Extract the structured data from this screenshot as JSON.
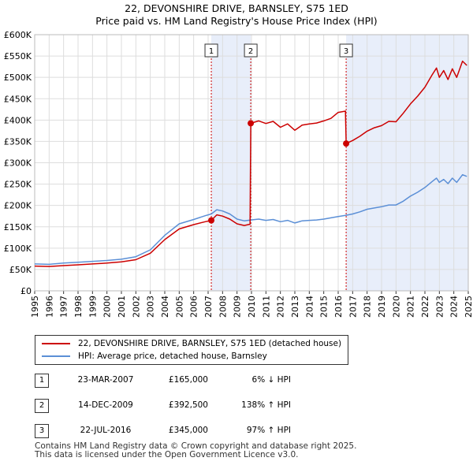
{
  "chart_data": {
    "type": "line",
    "title": "22, DEVONSHIRE DRIVE, BARNSLEY, S75 1ED",
    "subtitle": "Price paid vs. HM Land Registry's House Price Index (HPI)",
    "x_range": [
      1995,
      2025
    ],
    "ylim": [
      0,
      600000
    ],
    "x_ticks": [
      "1995",
      "1996",
      "1997",
      "1998",
      "1999",
      "2000",
      "2001",
      "2002",
      "2003",
      "2004",
      "2005",
      "2006",
      "2007",
      "2008",
      "2009",
      "2010",
      "2011",
      "2012",
      "2013",
      "2014",
      "2015",
      "2016",
      "2017",
      "2018",
      "2019",
      "2020",
      "2021",
      "2022",
      "2023",
      "2024",
      "2025"
    ],
    "y_ticks": [
      {
        "value": 0,
        "label": "£0"
      },
      {
        "value": 50000,
        "label": "£50K"
      },
      {
        "value": 100000,
        "label": "£100K"
      },
      {
        "value": 150000,
        "label": "£150K"
      },
      {
        "value": 200000,
        "label": "£200K"
      },
      {
        "value": 250000,
        "label": "£250K"
      },
      {
        "value": 300000,
        "label": "£300K"
      },
      {
        "value": 350000,
        "label": "£350K"
      },
      {
        "value": 400000,
        "label": "£400K"
      },
      {
        "value": 450000,
        "label": "£450K"
      },
      {
        "value": 500000,
        "label": "£500K"
      },
      {
        "value": 550000,
        "label": "£550K"
      },
      {
        "value": 600000,
        "label": "£600K"
      }
    ],
    "grid": true,
    "shaded_periods": [
      [
        2007.22,
        2009.95
      ],
      [
        2016.55,
        2025.0
      ]
    ],
    "series": [
      {
        "name": "22, DEVONSHIRE DRIVE, BARNSLEY, S75 1ED (detached house)",
        "color": "#cc0000",
        "points": [
          [
            1995.0,
            58000
          ],
          [
            1996.0,
            57000
          ],
          [
            1997.0,
            59000
          ],
          [
            1998.0,
            61000
          ],
          [
            1999.0,
            63000
          ],
          [
            2000.0,
            65000
          ],
          [
            2001.0,
            68000
          ],
          [
            2002.0,
            73000
          ],
          [
            2003.0,
            88000
          ],
          [
            2004.0,
            120000
          ],
          [
            2005.0,
            145000
          ],
          [
            2006.0,
            155000
          ],
          [
            2006.8,
            162000
          ],
          [
            2007.22,
            165000
          ],
          [
            2007.6,
            178000
          ],
          [
            2008.0,
            175000
          ],
          [
            2008.5,
            168000
          ],
          [
            2009.0,
            157000
          ],
          [
            2009.5,
            153000
          ],
          [
            2009.9,
            156000
          ],
          [
            2009.95,
            392500
          ],
          [
            2010.5,
            398000
          ],
          [
            2011.0,
            392000
          ],
          [
            2011.5,
            397000
          ],
          [
            2012.0,
            383000
          ],
          [
            2012.5,
            391000
          ],
          [
            2013.0,
            376000
          ],
          [
            2013.5,
            388000
          ],
          [
            2014.0,
            391000
          ],
          [
            2014.5,
            393000
          ],
          [
            2015.0,
            398000
          ],
          [
            2015.5,
            404000
          ],
          [
            2016.0,
            418000
          ],
          [
            2016.5,
            421000
          ],
          [
            2016.55,
            345000
          ],
          [
            2017.0,
            352000
          ],
          [
            2017.5,
            362000
          ],
          [
            2018.0,
            374000
          ],
          [
            2018.5,
            382000
          ],
          [
            2019.0,
            387000
          ],
          [
            2019.5,
            397000
          ],
          [
            2020.0,
            396000
          ],
          [
            2020.5,
            416000
          ],
          [
            2021.0,
            438000
          ],
          [
            2021.5,
            456000
          ],
          [
            2022.0,
            477000
          ],
          [
            2022.5,
            506000
          ],
          [
            2022.8,
            522000
          ],
          [
            2023.0,
            500000
          ],
          [
            2023.3,
            516000
          ],
          [
            2023.6,
            495000
          ],
          [
            2023.9,
            520000
          ],
          [
            2024.2,
            500000
          ],
          [
            2024.6,
            538000
          ],
          [
            2024.9,
            528000
          ]
        ]
      },
      {
        "name": "HPI: Average price, detached house, Barnsley",
        "color": "#5b8fd6",
        "points": [
          [
            1995.0,
            63000
          ],
          [
            1996.0,
            62000
          ],
          [
            1997.0,
            65000
          ],
          [
            1998.0,
            67000
          ],
          [
            1999.0,
            69000
          ],
          [
            2000.0,
            71000
          ],
          [
            2001.0,
            74000
          ],
          [
            2002.0,
            80000
          ],
          [
            2003.0,
            96000
          ],
          [
            2004.0,
            130000
          ],
          [
            2005.0,
            157000
          ],
          [
            2006.0,
            167000
          ],
          [
            2006.8,
            176000
          ],
          [
            2007.22,
            180000
          ],
          [
            2007.6,
            190000
          ],
          [
            2008.0,
            187000
          ],
          [
            2008.5,
            180000
          ],
          [
            2009.0,
            168000
          ],
          [
            2009.5,
            164000
          ],
          [
            2009.95,
            166000
          ],
          [
            2010.5,
            168000
          ],
          [
            2011.0,
            165000
          ],
          [
            2011.5,
            167000
          ],
          [
            2012.0,
            162000
          ],
          [
            2012.5,
            165000
          ],
          [
            2013.0,
            159000
          ],
          [
            2013.5,
            164000
          ],
          [
            2014.0,
            165000
          ],
          [
            2014.5,
            166000
          ],
          [
            2015.0,
            168000
          ],
          [
            2015.5,
            171000
          ],
          [
            2016.0,
            174000
          ],
          [
            2016.55,
            177000
          ],
          [
            2017.0,
            180000
          ],
          [
            2017.5,
            185000
          ],
          [
            2018.0,
            191000
          ],
          [
            2018.5,
            194000
          ],
          [
            2019.0,
            197000
          ],
          [
            2019.5,
            201000
          ],
          [
            2020.0,
            201000
          ],
          [
            2020.5,
            210000
          ],
          [
            2021.0,
            222000
          ],
          [
            2021.5,
            231000
          ],
          [
            2022.0,
            242000
          ],
          [
            2022.5,
            256000
          ],
          [
            2022.8,
            264000
          ],
          [
            2023.0,
            254000
          ],
          [
            2023.3,
            261000
          ],
          [
            2023.6,
            251000
          ],
          [
            2023.9,
            264000
          ],
          [
            2024.2,
            254000
          ],
          [
            2024.6,
            272000
          ],
          [
            2024.9,
            268000
          ]
        ]
      }
    ],
    "sales": [
      {
        "id": "1",
        "date": "23-MAR-2007",
        "year": 2007.22,
        "price": 165000,
        "price_label": "£165,000",
        "hpi_label": "6% ↓ HPI"
      },
      {
        "id": "2",
        "date": "14-DEC-2009",
        "year": 2009.95,
        "price": 392500,
        "price_label": "£392,500",
        "hpi_label": "138% ↑ HPI"
      },
      {
        "id": "3",
        "date": "22-JUL-2016",
        "year": 2016.55,
        "price": 345000,
        "price_label": "£345,000",
        "hpi_label": "97% ↑ HPI"
      }
    ]
  },
  "legend": {
    "property_label": "22, DEVONSHIRE DRIVE, BARNSLEY, S75 1ED (detached house)",
    "hpi_label": "HPI: Average price, detached house, Barnsley"
  },
  "footer": {
    "line1": "Contains HM Land Registry data © Crown copyright and database right 2025.",
    "line2": "This data is licensed under the Open Government Licence v3.0."
  }
}
